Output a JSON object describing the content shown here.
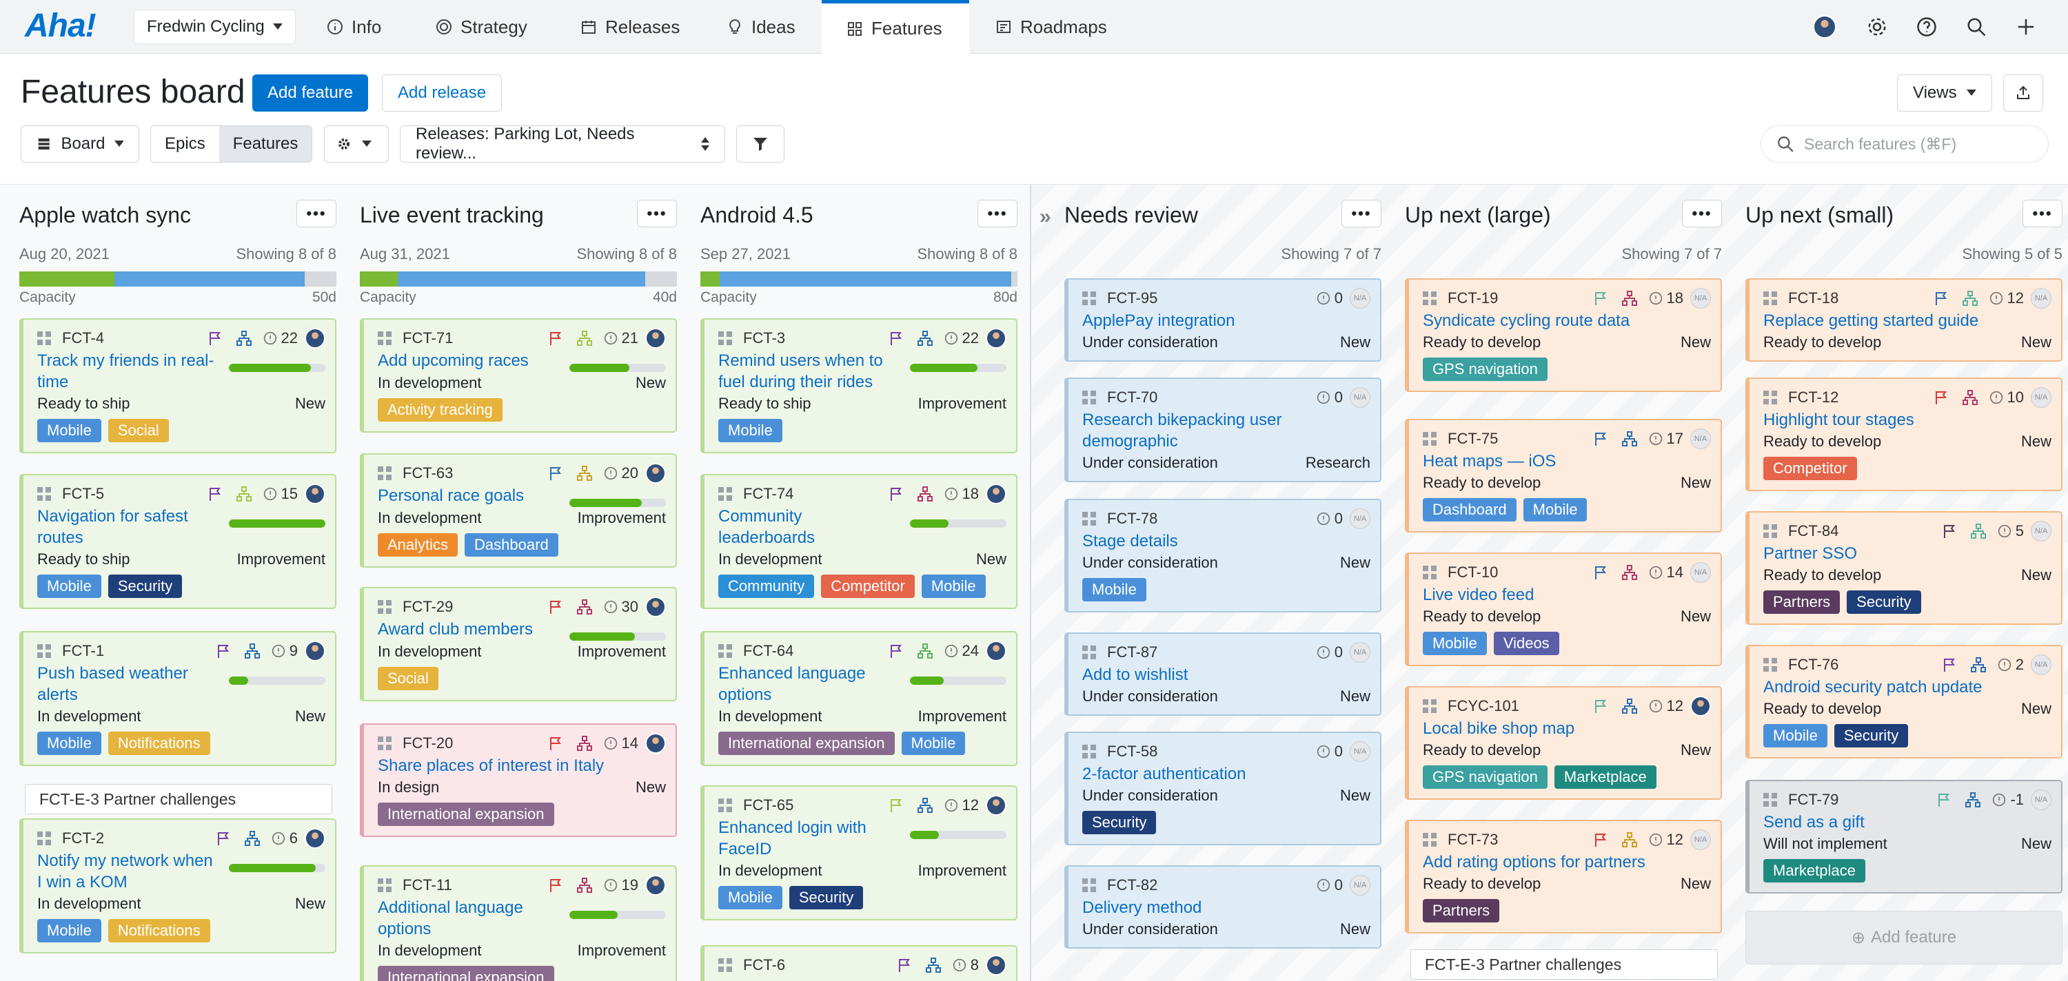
{
  "app": {
    "logo": "Aha!",
    "workspace": "Fredwin Cycling"
  },
  "nav": [
    {
      "label": "Info",
      "icon": "info-icon"
    },
    {
      "label": "Strategy",
      "icon": "target-icon"
    },
    {
      "label": "Releases",
      "icon": "calendar-icon"
    },
    {
      "label": "Ideas",
      "icon": "lightbulb-icon"
    },
    {
      "label": "Features",
      "icon": "grid-icon",
      "active": true
    },
    {
      "label": "Roadmaps",
      "icon": "roadmap-icon"
    }
  ],
  "header": {
    "title": "Features board",
    "add_feature": "Add feature",
    "add_release": "Add release",
    "views": "Views",
    "board": "Board",
    "epics": "Epics",
    "features": "Features",
    "releases_filter": "Releases: Parking Lot, Needs review...",
    "search_placeholder": "Search features (⌘F)"
  },
  "columns": [
    {
      "title": "Apple watch sync",
      "date": "Aug 20, 2021",
      "showing": "Showing 8 of 8",
      "capacity": "Capacity",
      "cap_value": "50d",
      "fill_green": 0.3,
      "fill_blue": 0.6,
      "cards": [
        {
          "id": "FCT-4",
          "title": "Track my friends in real-time",
          "status": "Ready to ship",
          "type": "New",
          "score": "22",
          "progress": 0.85,
          "color": "green",
          "flag": "#7b3fa3",
          "tree": "#2c6fb3",
          "tags": [
            {
              "label": "Mobile",
              "color": "#4a90d9"
            },
            {
              "label": "Social",
              "color": "#e6b33c"
            }
          ]
        },
        {
          "id": "FCT-5",
          "title": "Navigation for safest routes",
          "status": "Ready to ship",
          "type": "Improvement",
          "score": "15",
          "progress": 1.0,
          "color": "green",
          "flag": "#7b3fa3",
          "tree": "#a8c44a",
          "tags": [
            {
              "label": "Mobile",
              "color": "#4a90d9"
            },
            {
              "label": "Security",
              "color": "#1f3f7a"
            }
          ]
        },
        {
          "id": "FCT-1",
          "title": "Push based weather alerts",
          "status": "In development",
          "type": "New",
          "score": "9",
          "progress": 0.2,
          "color": "green",
          "flag": "#7b3fa3",
          "tree": "#2c6fb3",
          "tags": [
            {
              "label": "Mobile",
              "color": "#4a90d9"
            },
            {
              "label": "Notifications",
              "color": "#e6b33c"
            }
          ]
        },
        {
          "epic": "FCT-E-3 Partner challenges"
        },
        {
          "id": "FCT-2",
          "title": "Notify my network when I win a KOM",
          "status": "In development",
          "type": "New",
          "score": "6",
          "progress": 0.9,
          "color": "green",
          "flag": "#7b3fa3",
          "tree": "#2c6fb3",
          "tags": [
            {
              "label": "Mobile",
              "color": "#4a90d9"
            },
            {
              "label": "Notifications",
              "color": "#e6b33c"
            }
          ]
        }
      ]
    },
    {
      "title": "Live event tracking",
      "date": "Aug 31, 2021",
      "showing": "Showing 8 of 8",
      "capacity": "Capacity",
      "cap_value": "40d",
      "fill_green": 0.12,
      "fill_blue": 0.78,
      "cards": [
        {
          "id": "FCT-71",
          "title": "Add upcoming races",
          "status": "In development",
          "type": "New",
          "score": "21",
          "progress": 0.62,
          "color": "green",
          "flag": "#d73a3a",
          "tree": "#a8c44a",
          "tags": [
            {
              "label": "Activity tracking",
              "color": "#e6b33c"
            }
          ]
        },
        {
          "id": "FCT-63",
          "title": "Personal race goals",
          "status": "In development",
          "type": "Improvement",
          "score": "20",
          "progress": 0.75,
          "color": "green",
          "flag": "#2c6fb3",
          "tree": "#c9a227",
          "tags": [
            {
              "label": "Analytics",
              "color": "#ef8a2b"
            },
            {
              "label": "Dashboard",
              "color": "#4a90d9"
            }
          ]
        },
        {
          "id": "FCT-29",
          "title": "Award club members",
          "status": "In development",
          "type": "Improvement",
          "score": "30",
          "progress": 0.68,
          "color": "green",
          "flag": "#d73a3a",
          "tree": "#b03a6a",
          "tags": [
            {
              "label": "Social",
              "color": "#e6b33c"
            }
          ]
        },
        {
          "id": "FCT-20",
          "title": "Share places of interest in Italy",
          "status": "In design",
          "type": "New",
          "score": "14",
          "color": "pink",
          "flag": "#d73a3a",
          "tree": "#b03a6a",
          "tags": [
            {
              "label": "International expansion",
              "color": "#8a6a8e"
            }
          ]
        },
        {
          "id": "FCT-11",
          "title": "Additional language options",
          "status": "In development",
          "type": "Improvement",
          "score": "19",
          "progress": 0.5,
          "color": "green",
          "flag": "#d73a3a",
          "tree": "#b03a6a",
          "tags": [
            {
              "label": "International expansion",
              "color": "#8a6a8e"
            }
          ]
        }
      ]
    },
    {
      "title": "Android 4.5",
      "date": "Sep 27, 2021",
      "showing": "Showing 8 of 8",
      "capacity": "Capacity",
      "cap_value": "80d",
      "fill_green": 0.06,
      "fill_blue": 0.92,
      "cards": [
        {
          "id": "FCT-3",
          "title": "Remind users when to fuel during their rides",
          "status": "Ready to ship",
          "type": "Improvement",
          "score": "22",
          "progress": 0.7,
          "color": "green",
          "flag": "#7b3fa3",
          "tree": "#2c6fb3",
          "tags": [
            {
              "label": "Mobile",
              "color": "#4a90d9"
            }
          ]
        },
        {
          "id": "FCT-74",
          "title": "Community leaderboards",
          "status": "In development",
          "type": "New",
          "score": "18",
          "progress": 0.4,
          "color": "green",
          "flag": "#7b3fa3",
          "tree": "#b03a6a",
          "tags": [
            {
              "label": "Community",
              "color": "#2b8fd6"
            },
            {
              "label": "Competitor",
              "color": "#e5644a"
            },
            {
              "label": "Mobile",
              "color": "#4a90d9"
            }
          ]
        },
        {
          "id": "FCT-64",
          "title": "Enhanced language options",
          "status": "In development",
          "type": "Improvement",
          "score": "24",
          "progress": 0.35,
          "color": "green",
          "flag": "#7b3fa3",
          "tree": "#57b45a",
          "tags": [
            {
              "label": "International expansion",
              "color": "#8a6a8e"
            },
            {
              "label": "Mobile",
              "color": "#4a90d9"
            }
          ]
        },
        {
          "id": "FCT-65",
          "title": "Enhanced login with FaceID",
          "status": "In development",
          "type": "Improvement",
          "score": "12",
          "progress": 0.3,
          "color": "green",
          "flag": "#a8c44a",
          "tree": "#2c6fb3",
          "tags": [
            {
              "label": "Mobile",
              "color": "#4a90d9"
            },
            {
              "label": "Security",
              "color": "#1f3f7a"
            }
          ]
        },
        {
          "id": "FCT-6",
          "title": "",
          "status": "",
          "type": "",
          "score": "8",
          "color": "green",
          "flag": "#7b3fa3",
          "tree": "#2c6fb3",
          "tags": []
        }
      ]
    },
    {
      "title": "Needs review",
      "showing": "Showing 7 of 7",
      "cards": [
        {
          "id": "FCT-95",
          "title": "ApplePay integration",
          "status": "Under consideration",
          "type": "New",
          "score": "0",
          "color": "blue",
          "tags": []
        },
        {
          "id": "FCT-70",
          "title": "Research bikepacking user demographic",
          "status": "Under consideration",
          "type": "Research",
          "score": "0",
          "color": "blue",
          "tags": []
        },
        {
          "id": "FCT-78",
          "title": "Stage details",
          "status": "Under consideration",
          "type": "New",
          "score": "0",
          "color": "blue",
          "tags": [
            {
              "label": "Mobile",
              "color": "#4a90d9"
            }
          ]
        },
        {
          "id": "FCT-87",
          "title": "Add to wishlist",
          "status": "Under consideration",
          "type": "New",
          "score": "0",
          "color": "blue",
          "tags": []
        },
        {
          "id": "FCT-58",
          "title": "2-factor authentication",
          "status": "Under consideration",
          "type": "New",
          "score": "0",
          "color": "blue",
          "tags": [
            {
              "label": "Security",
              "color": "#1f3f7a"
            }
          ]
        },
        {
          "id": "FCT-82",
          "title": "Delivery method",
          "status": "Under consideration",
          "type": "New",
          "score": "0",
          "color": "blue",
          "tags": []
        }
      ]
    },
    {
      "title": "Up next (large)",
      "showing": "Showing 7 of 7",
      "cards": [
        {
          "id": "FCT-19",
          "title": "Syndicate cycling route data",
          "status": "Ready to develop",
          "type": "New",
          "score": "18",
          "color": "orange",
          "flag": "#57b4a0",
          "tree": "#b03a6a",
          "tags": [
            {
              "label": "GPS navigation",
              "color": "#3aa0a0"
            }
          ]
        },
        {
          "id": "FCT-75",
          "title": "Heat maps — iOS",
          "status": "Ready to develop",
          "type": "New",
          "score": "17",
          "color": "orange",
          "flag": "#2c6fb3",
          "tree": "#2c6fb3",
          "tags": [
            {
              "label": "Dashboard",
              "color": "#4a90d9"
            },
            {
              "label": "Mobile",
              "color": "#4a90d9"
            }
          ]
        },
        {
          "id": "FCT-10",
          "title": "Live video feed",
          "status": "Ready to develop",
          "type": "New",
          "score": "14",
          "color": "orange",
          "flag": "#2c6fb3",
          "tree": "#b03a6a",
          "tags": [
            {
              "label": "Mobile",
              "color": "#4a90d9"
            },
            {
              "label": "Videos",
              "color": "#5a5fa8"
            }
          ]
        },
        {
          "id": "FCYC-101",
          "title": "Local bike shop map",
          "status": "Ready to develop",
          "type": "New",
          "score": "12",
          "color": "orange",
          "flag": "#57b4a0",
          "tree": "#2c6fb3",
          "avatar": true,
          "tags": [
            {
              "label": "GPS navigation",
              "color": "#3aa0a0"
            },
            {
              "label": "Marketplace",
              "color": "#1e8a80"
            }
          ]
        },
        {
          "id": "FCT-73",
          "title": "Add rating options for partners",
          "status": "Ready to develop",
          "type": "New",
          "score": "12",
          "color": "orange",
          "flag": "#d73a3a",
          "tree": "#c9a227",
          "tags": [
            {
              "label": "Partners",
              "color": "#5a3a5e"
            }
          ]
        },
        {
          "epic": "FCT-E-3 Partner challenges"
        }
      ]
    },
    {
      "title": "Up next (small)",
      "showing": "Showing 5 of 5",
      "add_feature": "Add feature",
      "cards": [
        {
          "id": "FCT-18",
          "title": "Replace getting started guide",
          "status": "Ready to develop",
          "type": "New",
          "score": "12",
          "color": "orange",
          "flag": "#2c6fb3",
          "tree": "#57b4a0",
          "tags": []
        },
        {
          "id": "FCT-12",
          "title": "Highlight tour stages",
          "status": "Ready to develop",
          "type": "New",
          "score": "10",
          "color": "orange",
          "flag": "#d73a3a",
          "tree": "#b03a6a",
          "tags": [
            {
              "label": "Competitor",
              "color": "#e5644a"
            }
          ]
        },
        {
          "id": "FCT-84",
          "title": "Partner SSO",
          "status": "Ready to develop",
          "type": "New",
          "score": "5",
          "color": "orange",
          "flag": "#5a3a5e",
          "tree": "#57b4a0",
          "tags": [
            {
              "label": "Partners",
              "color": "#5a3a5e"
            },
            {
              "label": "Security",
              "color": "#1f3f7a"
            }
          ]
        },
        {
          "id": "FCT-76",
          "title": "Android security patch update",
          "status": "Ready to develop",
          "type": "New",
          "score": "2",
          "color": "orange",
          "flag": "#7b3fa3",
          "tree": "#2c6fb3",
          "tags": [
            {
              "label": "Mobile",
              "color": "#4a90d9"
            },
            {
              "label": "Security",
              "color": "#1f3f7a"
            }
          ]
        },
        {
          "id": "FCT-79",
          "title": "Send as a gift",
          "status": "Will not implement",
          "type": "New",
          "score": "-1",
          "color": "grey",
          "flag": "#57b4a0",
          "tree": "#2c6fb3",
          "tags": [
            {
              "label": "Marketplace",
              "color": "#1e8a80"
            }
          ]
        }
      ]
    }
  ]
}
